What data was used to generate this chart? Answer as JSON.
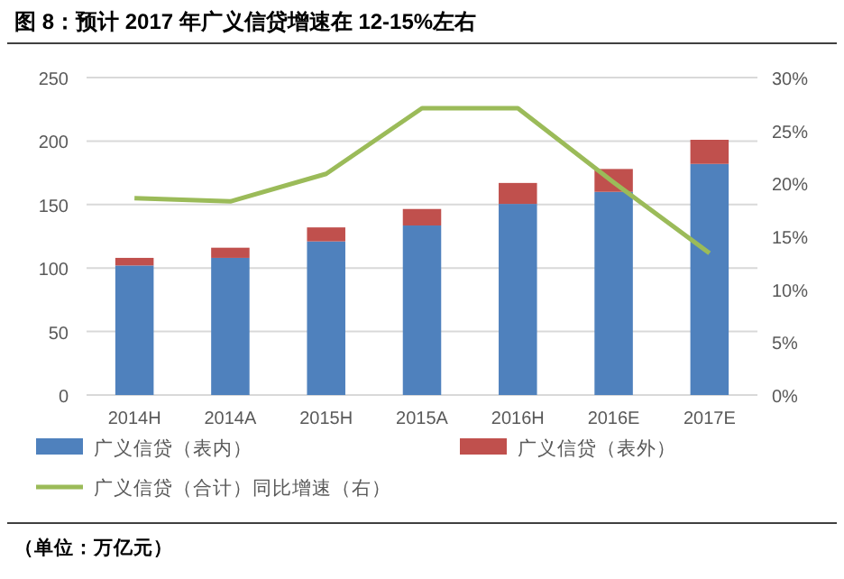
{
  "chart_data": {
    "type": "bar",
    "stacked": true,
    "title": "图 8：预计 2017 年广义信贷增速在 12-15%左右",
    "categories": [
      "2014H",
      "2014A",
      "2015H",
      "2015A",
      "2016H",
      "2016E",
      "2017E"
    ],
    "series": [
      {
        "name": "广义信贷（表内）",
        "color": "#4f81bd",
        "values": [
          102,
          108,
          121,
          133.5,
          150.5,
          160,
          182
        ]
      },
      {
        "name": "广义信贷（表外）",
        "color": "#c0504d",
        "values": [
          6,
          8,
          11,
          13,
          16.5,
          18,
          19
        ]
      },
      {
        "name": "广义信贷（合计）同比增速（右）",
        "type": "line",
        "axis": "y2",
        "color": "#9bbb59",
        "values": [
          18.6,
          18.3,
          20.9,
          27.1,
          27.1,
          20.1,
          13.4
        ]
      }
    ],
    "ylim": [
      0,
      250
    ],
    "yticks": [
      0,
      50,
      100,
      150,
      200,
      250
    ],
    "y2lim": [
      0,
      30
    ],
    "y2ticks": [
      {
        "value": 0,
        "label": "0%"
      },
      {
        "value": 5,
        "label": "5%"
      },
      {
        "value": 10,
        "label": "10%"
      },
      {
        "value": 15,
        "label": "15%"
      },
      {
        "value": 20,
        "label": "20%"
      },
      {
        "value": 25,
        "label": "25%"
      },
      {
        "value": 30,
        "label": "30%"
      }
    ],
    "grid": "y",
    "legend": "bottom",
    "annotations": [
      "（单位：万亿元）"
    ]
  }
}
